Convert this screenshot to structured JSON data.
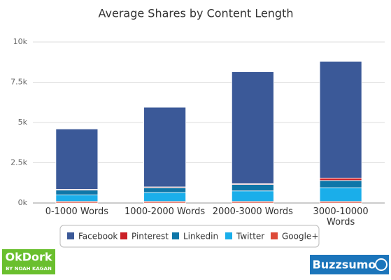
{
  "chart_data": {
    "type": "bar",
    "stacked": true,
    "title": "Average Shares by Content Length",
    "categories": [
      "0-1000 Words",
      "1000-2000 Words",
      "2000-3000 Words",
      "3000-10000 Words"
    ],
    "series": [
      {
        "name": "Facebook",
        "color": "#3b5998",
        "values": [
          3750,
          4950,
          6950,
          7250
        ]
      },
      {
        "name": "Pinterest",
        "color": "#cb2027",
        "values": [
          50,
          50,
          50,
          150
        ]
      },
      {
        "name": "Linkedin",
        "color": "#0e76a8",
        "values": [
          300,
          300,
          400,
          450
        ]
      },
      {
        "name": "Twitter",
        "color": "#1aaeea",
        "values": [
          400,
          550,
          650,
          850
        ]
      },
      {
        "name": "Google+",
        "color": "#dd4b39",
        "values": [
          100,
          100,
          100,
          100
        ]
      }
    ],
    "ylim": [
      0,
      10000
    ],
    "yticks": [
      {
        "value": 0,
        "label": "0k"
      },
      {
        "value": 2500,
        "label": "2.5k"
      },
      {
        "value": 5000,
        "label": "5k"
      },
      {
        "value": 7500,
        "label": "7.5k"
      },
      {
        "value": 10000,
        "label": "10k"
      }
    ],
    "grid": true,
    "legend": "bottom"
  },
  "logos": {
    "left": "OkDork",
    "left_sub": "BY NOAH KAGAN",
    "right": "Buzzsumo"
  }
}
